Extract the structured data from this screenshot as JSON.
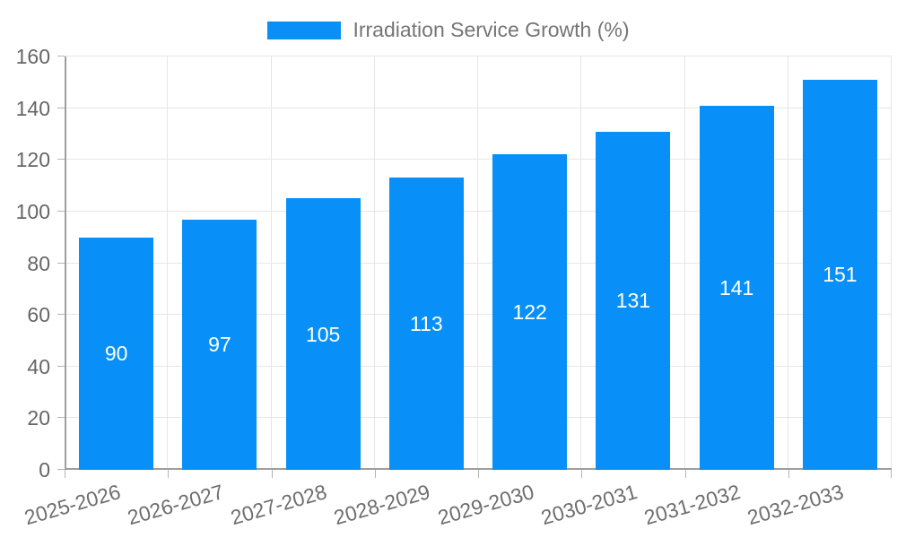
{
  "chart_data": {
    "type": "bar",
    "title": "",
    "legend": "Irradiation Service Growth (%)",
    "legend_position": "top-center",
    "categories": [
      "2025-2026",
      "2026-2027",
      "2027-2028",
      "2028-2029",
      "2029-2030",
      "2030-2031",
      "2031-2032",
      "2032-2033"
    ],
    "series": [
      {
        "name": "Irradiation Service Growth (%)",
        "values": [
          90,
          97,
          105,
          113,
          122,
          131,
          141,
          151
        ]
      }
    ],
    "value_labels_shown": true,
    "value_label_position": "inside-center",
    "xlabel": "",
    "ylabel": "",
    "ylim": [
      0,
      160
    ],
    "ytick_step": 20,
    "ytick_labels": [
      "0",
      "20",
      "40",
      "60",
      "80",
      "100",
      "120",
      "140",
      "160"
    ],
    "grid": true,
    "xlabel_rotation_deg": -16
  },
  "colors": {
    "bar": "#0890F8",
    "value_label": "#ffffff",
    "tick_label": "#666666",
    "legend_text": "#757575",
    "axis_line": "#9e9e9e",
    "gridline": "#e6e6e6",
    "background": "#ffffff"
  }
}
